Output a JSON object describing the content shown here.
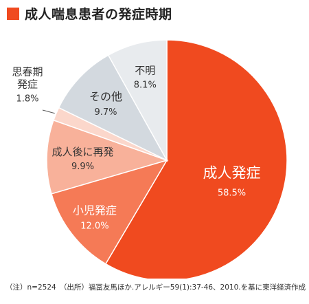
{
  "title": "成人喘息患者の発症時期",
  "accent_color": "#f04a1f",
  "footnote": "（注）n=2524　（出所）福冨友馬ほか.アレルギー59(1):37-46、2010.を基に東洋経済作成",
  "chart_data": {
    "type": "pie",
    "title": "成人喘息患者の発症時期",
    "start": "12 o'clock",
    "direction": "clockwise",
    "slices": [
      {
        "name": "成人発症",
        "lines": [
          "成人発症"
        ],
        "value": 58.5,
        "label": "58.5%",
        "color": "#f04a1f"
      },
      {
        "name": "小児発症",
        "lines": [
          "小児発症"
        ],
        "value": 12.0,
        "label": "12.0%",
        "color": "#f57a56"
      },
      {
        "name": "成人後に再発",
        "lines": [
          "成人後に再発"
        ],
        "value": 9.9,
        "label": "9.9%",
        "color": "#f8b19a"
      },
      {
        "name": "思春期発症",
        "lines": [
          "思春期",
          "発症"
        ],
        "value": 1.8,
        "label": "1.8%",
        "color": "#fbd7cb"
      },
      {
        "name": "その他",
        "lines": [
          "その他"
        ],
        "value": 9.7,
        "label": "9.7%",
        "color": "#d3d9df"
      },
      {
        "name": "不明",
        "lines": [
          "不明"
        ],
        "value": 8.1,
        "label": "8.1%",
        "color": "#e8ebee"
      }
    ]
  }
}
